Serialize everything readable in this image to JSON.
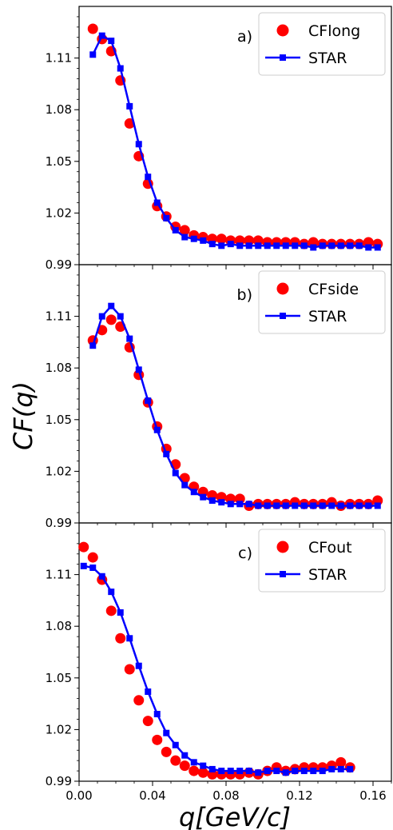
{
  "chart_data": {
    "type": "scatter",
    "xlabel": "q[GeV/c]",
    "ylabel": "CF(q)",
    "xlim": [
      0.0,
      0.17
    ],
    "xticks": [
      "0.00",
      "0.04",
      "0.08",
      "0.12",
      "0.16"
    ],
    "ylim": [
      0.99,
      1.14
    ],
    "yticks": [
      "0.99",
      "1.02",
      "1.05",
      "1.08",
      "1.11"
    ],
    "panels": [
      {
        "tag": "a)",
        "series": [
          {
            "name": "CFlong",
            "marker": "circle",
            "color": "#ff0000",
            "x": [
              0.0075,
              0.0125,
              0.0175,
              0.0225,
              0.0275,
              0.0325,
              0.0375,
              0.0425,
              0.0475,
              0.0525,
              0.0575,
              0.0625,
              0.0675,
              0.0725,
              0.0775,
              0.0825,
              0.0875,
              0.0925,
              0.0975,
              0.1025,
              0.1075,
              0.1125,
              0.1175,
              0.1225,
              0.1275,
              0.1325,
              0.1375,
              0.1425,
              0.1475,
              0.1525,
              0.1575,
              0.1625
            ],
            "y": [
              1.127,
              1.121,
              1.114,
              1.097,
              1.072,
              1.053,
              1.037,
              1.024,
              1.018,
              1.012,
              1.01,
              1.007,
              1.006,
              1.005,
              1.005,
              1.004,
              1.004,
              1.004,
              1.004,
              1.003,
              1.003,
              1.003,
              1.003,
              1.002,
              1.003,
              1.002,
              1.002,
              1.002,
              1.002,
              1.002,
              1.003,
              1.002
            ]
          },
          {
            "name": "STAR",
            "marker": "square",
            "color": "#0000ff",
            "x": [
              0.0075,
              0.0125,
              0.0175,
              0.0225,
              0.0275,
              0.0325,
              0.0375,
              0.0425,
              0.0475,
              0.0525,
              0.0575,
              0.0625,
              0.0675,
              0.0725,
              0.0775,
              0.0825,
              0.0875,
              0.0925,
              0.0975,
              0.1025,
              0.1075,
              0.1125,
              0.1175,
              0.1225,
              0.1275,
              0.1325,
              0.1375,
              0.1425,
              0.1475,
              0.1525,
              0.1575,
              0.1625
            ],
            "y": [
              1.112,
              1.123,
              1.12,
              1.104,
              1.082,
              1.06,
              1.041,
              1.026,
              1.017,
              1.01,
              1.006,
              1.005,
              1.004,
              1.002,
              1.001,
              1.002,
              1.001,
              1.001,
              1.001,
              1.001,
              1.001,
              1.001,
              1.001,
              1.001,
              1.0,
              1.001,
              1.001,
              1.001,
              1.001,
              1.001,
              1.0,
              1.0
            ]
          }
        ]
      },
      {
        "tag": "b)",
        "series": [
          {
            "name": "CFside",
            "marker": "circle",
            "color": "#ff0000",
            "x": [
              0.0075,
              0.0125,
              0.0175,
              0.0225,
              0.0275,
              0.0325,
              0.0375,
              0.0425,
              0.0475,
              0.0525,
              0.0575,
              0.0625,
              0.0675,
              0.0725,
              0.0775,
              0.0825,
              0.0875,
              0.0925,
              0.0975,
              0.1025,
              0.1075,
              0.1125,
              0.1175,
              0.1225,
              0.1275,
              0.1325,
              0.1375,
              0.1425,
              0.1475,
              0.1525,
              0.1575,
              0.1625
            ],
            "y": [
              1.096,
              1.102,
              1.108,
              1.104,
              1.092,
              1.076,
              1.06,
              1.046,
              1.033,
              1.024,
              1.016,
              1.011,
              1.008,
              1.006,
              1.005,
              1.004,
              1.004,
              1.0,
              1.001,
              1.001,
              1.001,
              1.001,
              1.002,
              1.001,
              1.001,
              1.001,
              1.002,
              1.0,
              1.001,
              1.001,
              1.001,
              1.003
            ]
          },
          {
            "name": "STAR",
            "marker": "square",
            "color": "#0000ff",
            "x": [
              0.0075,
              0.0125,
              0.0175,
              0.0225,
              0.0275,
              0.0325,
              0.0375,
              0.0425,
              0.0475,
              0.0525,
              0.0575,
              0.0625,
              0.0675,
              0.0725,
              0.0775,
              0.0825,
              0.0875,
              0.0925,
              0.0975,
              0.1025,
              0.1075,
              0.1125,
              0.1175,
              0.1225,
              0.1275,
              0.1325,
              0.1375,
              0.1425,
              0.1475,
              0.1525,
              0.1575,
              0.1625
            ],
            "y": [
              1.093,
              1.11,
              1.116,
              1.11,
              1.097,
              1.079,
              1.061,
              1.044,
              1.03,
              1.019,
              1.012,
              1.008,
              1.005,
              1.003,
              1.002,
              1.001,
              1.001,
              1.001,
              1.0,
              1.0,
              1.0,
              1.0,
              1.0,
              1.0,
              1.0,
              1.0,
              1.0,
              1.0,
              1.0,
              1.0,
              1.0,
              1.0
            ]
          }
        ]
      },
      {
        "tag": "c)",
        "series": [
          {
            "name": "CFout",
            "marker": "circle",
            "color": "#ff0000",
            "x": [
              0.0025,
              0.0075,
              0.0125,
              0.0175,
              0.0225,
              0.0275,
              0.0325,
              0.0375,
              0.0425,
              0.0475,
              0.0525,
              0.0575,
              0.0625,
              0.0675,
              0.0725,
              0.0775,
              0.0825,
              0.0875,
              0.0925,
              0.0975,
              0.1025,
              0.1075,
              0.1125,
              0.1175,
              0.1225,
              0.1275,
              0.1325,
              0.1375,
              0.1425,
              0.1475
            ],
            "y": [
              1.126,
              1.12,
              1.107,
              1.089,
              1.073,
              1.055,
              1.037,
              1.025,
              1.014,
              1.007,
              1.002,
              0.999,
              0.996,
              0.995,
              0.994,
              0.994,
              0.994,
              0.994,
              0.995,
              0.994,
              0.996,
              0.998,
              0.996,
              0.997,
              0.998,
              0.998,
              0.998,
              0.999,
              1.001,
              0.998
            ]
          },
          {
            "name": "STAR",
            "marker": "square",
            "color": "#0000ff",
            "x": [
              0.0025,
              0.0075,
              0.0125,
              0.0175,
              0.0225,
              0.0275,
              0.0325,
              0.0375,
              0.0425,
              0.0475,
              0.0525,
              0.0575,
              0.0625,
              0.0675,
              0.0725,
              0.0775,
              0.0825,
              0.0875,
              0.0925,
              0.0975,
              0.1025,
              0.1075,
              0.1125,
              0.1175,
              0.1225,
              0.1275,
              0.1325,
              0.1375,
              0.1425,
              0.1475
            ],
            "y": [
              1.115,
              1.114,
              1.109,
              1.1,
              1.088,
              1.073,
              1.057,
              1.042,
              1.029,
              1.018,
              1.011,
              1.005,
              1.001,
              0.999,
              0.997,
              0.996,
              0.996,
              0.996,
              0.996,
              0.995,
              0.996,
              0.996,
              0.995,
              0.996,
              0.996,
              0.996,
              0.996,
              0.997,
              0.997,
              0.997
            ]
          }
        ]
      }
    ]
  }
}
